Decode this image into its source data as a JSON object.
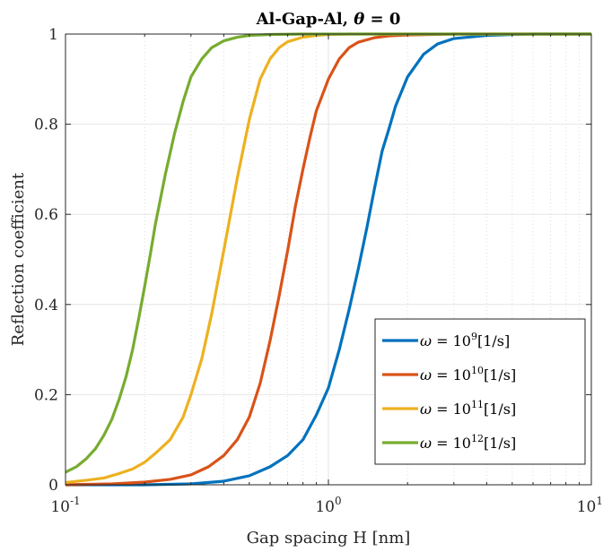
{
  "chart_data": {
    "type": "line",
    "title_text": "Al-Gap-Al, ",
    "title_symbol": "θ",
    "title_value": " = 0",
    "xlabel": "Gap spacing H [nm]",
    "ylabel": "Reflection coefficient",
    "xscale": "log",
    "xlim": [
      0.1,
      10
    ],
    "ylim": [
      0,
      1
    ],
    "xticks": [
      0.1,
      1,
      10
    ],
    "xtick_labels": [
      {
        "base": "10",
        "exp": "-1"
      },
      {
        "base": "10",
        "exp": "0"
      },
      {
        "base": "10",
        "exp": "1"
      }
    ],
    "yticks": [
      0,
      0.2,
      0.4,
      0.6,
      0.8,
      1
    ],
    "ytick_labels": [
      "0",
      "0.2",
      "0.4",
      "0.6",
      "0.8",
      "1"
    ],
    "grid": true,
    "legend_position": "bottom-right",
    "series": [
      {
        "name_prefix": "ω = 10",
        "name_exp": "9",
        "name_suffix": "[1/s]",
        "color": "#0072BD",
        "x": [
          0.1,
          0.2,
          0.3,
          0.4,
          0.5,
          0.6,
          0.7,
          0.8,
          0.9,
          1.0,
          1.1,
          1.2,
          1.3,
          1.4,
          1.5,
          1.6,
          1.7,
          1.8,
          2.0,
          2.3,
          2.6,
          3.0,
          4.0,
          5.0,
          6.0,
          8.0,
          10.0
        ],
        "y": [
          0.0,
          0.0,
          0.002,
          0.008,
          0.02,
          0.04,
          0.065,
          0.1,
          0.155,
          0.215,
          0.3,
          0.39,
          0.48,
          0.57,
          0.66,
          0.74,
          0.79,
          0.84,
          0.905,
          0.955,
          0.978,
          0.99,
          0.997,
          0.999,
          1.0,
          1.0,
          1.0
        ]
      },
      {
        "name_prefix": "ω = 10",
        "name_exp": "10",
        "name_suffix": "[1/s]",
        "color": "#D95319",
        "x": [
          0.1,
          0.15,
          0.2,
          0.25,
          0.3,
          0.35,
          0.4,
          0.45,
          0.5,
          0.55,
          0.6,
          0.65,
          0.7,
          0.75,
          0.8,
          0.85,
          0.9,
          1.0,
          1.1,
          1.2,
          1.3,
          1.5,
          1.7,
          2.0,
          3.0,
          5.0,
          10.0
        ],
        "y": [
          0.0,
          0.002,
          0.006,
          0.012,
          0.022,
          0.04,
          0.065,
          0.1,
          0.15,
          0.225,
          0.32,
          0.42,
          0.52,
          0.62,
          0.7,
          0.77,
          0.83,
          0.9,
          0.945,
          0.97,
          0.982,
          0.992,
          0.996,
          0.998,
          1.0,
          1.0,
          1.0
        ]
      },
      {
        "name_prefix": "ω = 10",
        "name_exp": "11",
        "name_suffix": "[1/s]",
        "color": "#EDB120",
        "x": [
          0.1,
          0.12,
          0.14,
          0.16,
          0.18,
          0.2,
          0.22,
          0.25,
          0.28,
          0.3,
          0.33,
          0.36,
          0.4,
          0.45,
          0.5,
          0.55,
          0.6,
          0.65,
          0.7,
          0.8,
          0.9,
          1.0,
          1.2,
          1.5,
          2.0,
          5.0,
          10.0
        ],
        "y": [
          0.005,
          0.01,
          0.015,
          0.025,
          0.035,
          0.05,
          0.07,
          0.1,
          0.15,
          0.2,
          0.28,
          0.38,
          0.52,
          0.68,
          0.81,
          0.9,
          0.945,
          0.97,
          0.983,
          0.993,
          0.997,
          0.999,
          1.0,
          1.0,
          1.0,
          1.0,
          1.0
        ]
      },
      {
        "name_prefix": "ω = 10",
        "name_exp": "12",
        "name_suffix": "[1/s]",
        "color": "#77AC30",
        "x": [
          0.1,
          0.11,
          0.12,
          0.13,
          0.14,
          0.15,
          0.16,
          0.17,
          0.18,
          0.19,
          0.2,
          0.21,
          0.22,
          0.24,
          0.26,
          0.28,
          0.3,
          0.33,
          0.36,
          0.4,
          0.45,
          0.5,
          0.6,
          0.8,
          1.0,
          2.0,
          10.0
        ],
        "y": [
          0.028,
          0.04,
          0.058,
          0.08,
          0.11,
          0.145,
          0.19,
          0.24,
          0.3,
          0.37,
          0.44,
          0.51,
          0.58,
          0.69,
          0.78,
          0.85,
          0.905,
          0.945,
          0.97,
          0.985,
          0.993,
          0.997,
          0.999,
          1.0,
          1.0,
          1.0,
          1.0
        ]
      }
    ]
  }
}
